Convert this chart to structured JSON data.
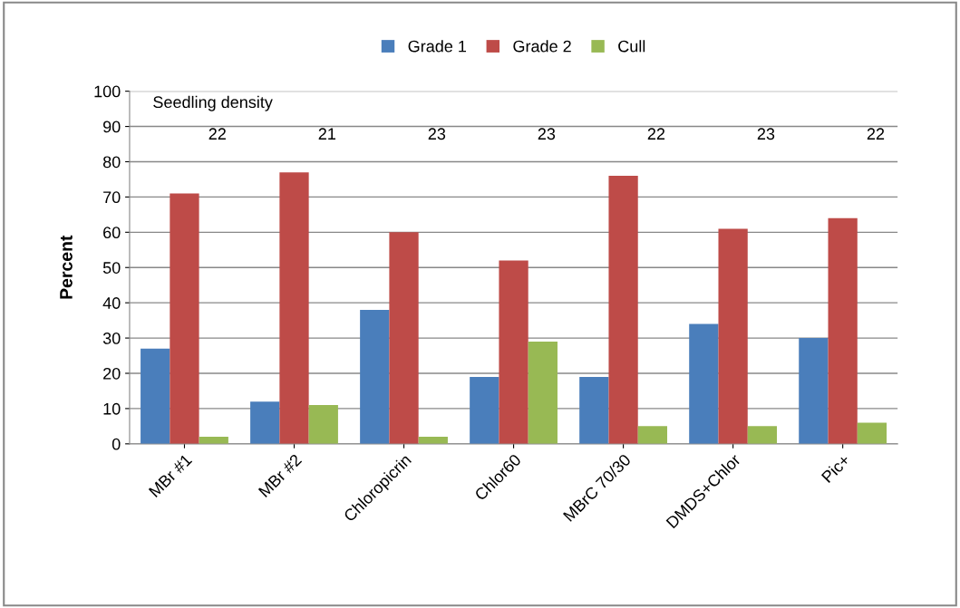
{
  "chart_data": {
    "type": "bar",
    "ylabel": "Percent",
    "categories": [
      "MBr #1",
      "MBr #2",
      "Chloropicrin",
      "Chlor60",
      "MBrC 70/30",
      "DMDS+Chlor",
      "Pic+"
    ],
    "series": [
      {
        "name": "Grade 1",
        "color": "#4a7ebb",
        "values": [
          27,
          12,
          38,
          19,
          19,
          34,
          30
        ]
      },
      {
        "name": "Grade 2",
        "color": "#be4b48",
        "values": [
          71,
          77,
          60,
          52,
          76,
          61,
          64
        ]
      },
      {
        "name": "Cull",
        "color": "#98b954",
        "values": [
          2,
          11,
          2,
          29,
          5,
          5,
          6
        ]
      }
    ],
    "ylim": [
      0,
      100
    ],
    "yticks": [
      0,
      10,
      20,
      30,
      40,
      50,
      60,
      70,
      80,
      90,
      100
    ],
    "grid": "y",
    "legend": "top",
    "annotations": [
      "Seedling density",
      "22",
      "21",
      "23",
      "23",
      "22",
      "23",
      "22"
    ]
  }
}
